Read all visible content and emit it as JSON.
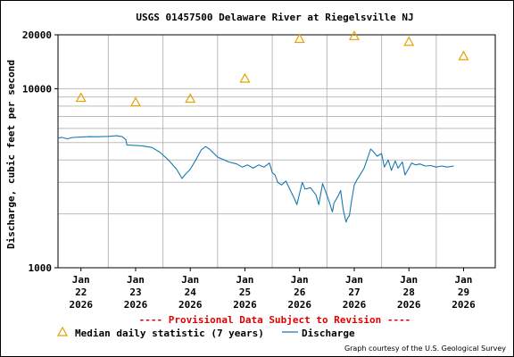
{
  "chart_data": {
    "type": "line",
    "title": "USGS 01457500 Delaware River at Riegelsville NJ",
    "ylabel": "Discharge, cubic feet per second",
    "yscale": "log",
    "ylim": [
      1000,
      20000
    ],
    "yticks": [
      {
        "value": 1000,
        "label": "1000"
      },
      {
        "value": 10000,
        "label": "10000"
      },
      {
        "value": 20000,
        "label": "20000"
      }
    ],
    "xlim": [
      21.58,
      29.58
    ],
    "xticks": [
      {
        "day": 22,
        "lines": [
          "Jan",
          "22",
          "2026"
        ]
      },
      {
        "day": 23,
        "lines": [
          "Jan",
          "23",
          "2026"
        ]
      },
      {
        "day": 24,
        "lines": [
          "Jan",
          "24",
          "2026"
        ]
      },
      {
        "day": 25,
        "lines": [
          "Jan",
          "25",
          "2026"
        ]
      },
      {
        "day": 26,
        "lines": [
          "Jan",
          "26",
          "2026"
        ]
      },
      {
        "day": 27,
        "lines": [
          "Jan",
          "27",
          "2026"
        ]
      },
      {
        "day": 28,
        "lines": [
          "Jan",
          "28",
          "2026"
        ]
      },
      {
        "day": 29,
        "lines": [
          "Jan",
          "29",
          "2026"
        ]
      }
    ],
    "grid": true,
    "series": [
      {
        "name": "Median daily statistic (7 years)",
        "style": "triangle-marker",
        "color": "#e8a000",
        "points": [
          {
            "day": 22.0,
            "value": 8900
          },
          {
            "day": 23.0,
            "value": 8400
          },
          {
            "day": 24.0,
            "value": 8800
          },
          {
            "day": 25.0,
            "value": 11400
          },
          {
            "day": 26.0,
            "value": 19000
          },
          {
            "day": 27.0,
            "value": 19700
          },
          {
            "day": 28.0,
            "value": 18300
          },
          {
            "day": 29.0,
            "value": 15200
          }
        ]
      },
      {
        "name": "Discharge",
        "style": "line",
        "color": "#1a78b0",
        "points": [
          {
            "day": 21.58,
            "value": 5300
          },
          {
            "day": 21.65,
            "value": 5350
          },
          {
            "day": 21.75,
            "value": 5250
          },
          {
            "day": 21.85,
            "value": 5340
          },
          {
            "day": 22.0,
            "value": 5370
          },
          {
            "day": 22.15,
            "value": 5400
          },
          {
            "day": 22.3,
            "value": 5390
          },
          {
            "day": 22.5,
            "value": 5420
          },
          {
            "day": 22.65,
            "value": 5460
          },
          {
            "day": 22.75,
            "value": 5400
          },
          {
            "day": 22.82,
            "value": 5200
          },
          {
            "day": 22.84,
            "value": 4850
          },
          {
            "day": 22.95,
            "value": 4830
          },
          {
            "day": 23.1,
            "value": 4800
          },
          {
            "day": 23.3,
            "value": 4700
          },
          {
            "day": 23.45,
            "value": 4400
          },
          {
            "day": 23.6,
            "value": 4000
          },
          {
            "day": 23.75,
            "value": 3550
          },
          {
            "day": 23.85,
            "value": 3150
          },
          {
            "day": 23.9,
            "value": 3300
          },
          {
            "day": 24.0,
            "value": 3550
          },
          {
            "day": 24.1,
            "value": 4000
          },
          {
            "day": 24.2,
            "value": 4550
          },
          {
            "day": 24.28,
            "value": 4750
          },
          {
            "day": 24.35,
            "value": 4600
          },
          {
            "day": 24.5,
            "value": 4150
          },
          {
            "day": 24.7,
            "value": 3900
          },
          {
            "day": 24.85,
            "value": 3800
          },
          {
            "day": 24.95,
            "value": 3650
          },
          {
            "day": 25.05,
            "value": 3750
          },
          {
            "day": 25.15,
            "value": 3600
          },
          {
            "day": 25.25,
            "value": 3750
          },
          {
            "day": 25.35,
            "value": 3650
          },
          {
            "day": 25.45,
            "value": 3850
          },
          {
            "day": 25.5,
            "value": 3400
          },
          {
            "day": 25.55,
            "value": 3300
          },
          {
            "day": 25.6,
            "value": 3000
          },
          {
            "day": 25.67,
            "value": 2900
          },
          {
            "day": 25.75,
            "value": 3050
          },
          {
            "day": 25.82,
            "value": 2750
          },
          {
            "day": 25.9,
            "value": 2450
          },
          {
            "day": 25.95,
            "value": 2250
          },
          {
            "day": 26.0,
            "value": 2600
          },
          {
            "day": 26.05,
            "value": 3000
          },
          {
            "day": 26.1,
            "value": 2750
          },
          {
            "day": 26.2,
            "value": 2800
          },
          {
            "day": 26.3,
            "value": 2550
          },
          {
            "day": 26.35,
            "value": 2250
          },
          {
            "day": 26.42,
            "value": 2950
          },
          {
            "day": 26.48,
            "value": 2650
          },
          {
            "day": 26.55,
            "value": 2300
          },
          {
            "day": 26.6,
            "value": 2050
          },
          {
            "day": 26.63,
            "value": 2300
          },
          {
            "day": 26.7,
            "value": 2500
          },
          {
            "day": 26.75,
            "value": 2700
          },
          {
            "day": 26.8,
            "value": 2100
          },
          {
            "day": 26.85,
            "value": 1800
          },
          {
            "day": 26.88,
            "value": 1900
          },
          {
            "day": 26.91,
            "value": 1950
          },
          {
            "day": 26.95,
            "value": 2350
          },
          {
            "day": 27.0,
            "value": 2900
          },
          {
            "day": 27.05,
            "value": 3100
          },
          {
            "day": 27.12,
            "value": 3350
          },
          {
            "day": 27.18,
            "value": 3600
          },
          {
            "day": 27.25,
            "value": 4150
          },
          {
            "day": 27.3,
            "value": 4600
          },
          {
            "day": 27.35,
            "value": 4450
          },
          {
            "day": 27.42,
            "value": 4200
          },
          {
            "day": 27.5,
            "value": 4350
          },
          {
            "day": 27.55,
            "value": 3650
          },
          {
            "day": 27.62,
            "value": 4000
          },
          {
            "day": 27.68,
            "value": 3500
          },
          {
            "day": 27.75,
            "value": 3950
          },
          {
            "day": 27.8,
            "value": 3600
          },
          {
            "day": 27.88,
            "value": 3900
          },
          {
            "day": 27.93,
            "value": 3300
          },
          {
            "day": 28.0,
            "value": 3600
          },
          {
            "day": 28.05,
            "value": 3850
          },
          {
            "day": 28.12,
            "value": 3750
          },
          {
            "day": 28.2,
            "value": 3800
          },
          {
            "day": 28.3,
            "value": 3700
          },
          {
            "day": 28.4,
            "value": 3720
          },
          {
            "day": 28.5,
            "value": 3650
          },
          {
            "day": 28.6,
            "value": 3700
          },
          {
            "day": 28.7,
            "value": 3650
          },
          {
            "day": 28.82,
            "value": 3700
          }
        ]
      }
    ]
  },
  "provisional": "---- Provisional Data Subject to Revision ----",
  "legend": {
    "median": "Median daily statistic (7 years)",
    "discharge": "Discharge"
  },
  "credit": "Graph courtesy of the U.S. Geological Survey",
  "colors": {
    "median": "#e8a000",
    "discharge": "#1a78b0",
    "provisional": "#e00000",
    "grid": "#bbbbbb"
  }
}
